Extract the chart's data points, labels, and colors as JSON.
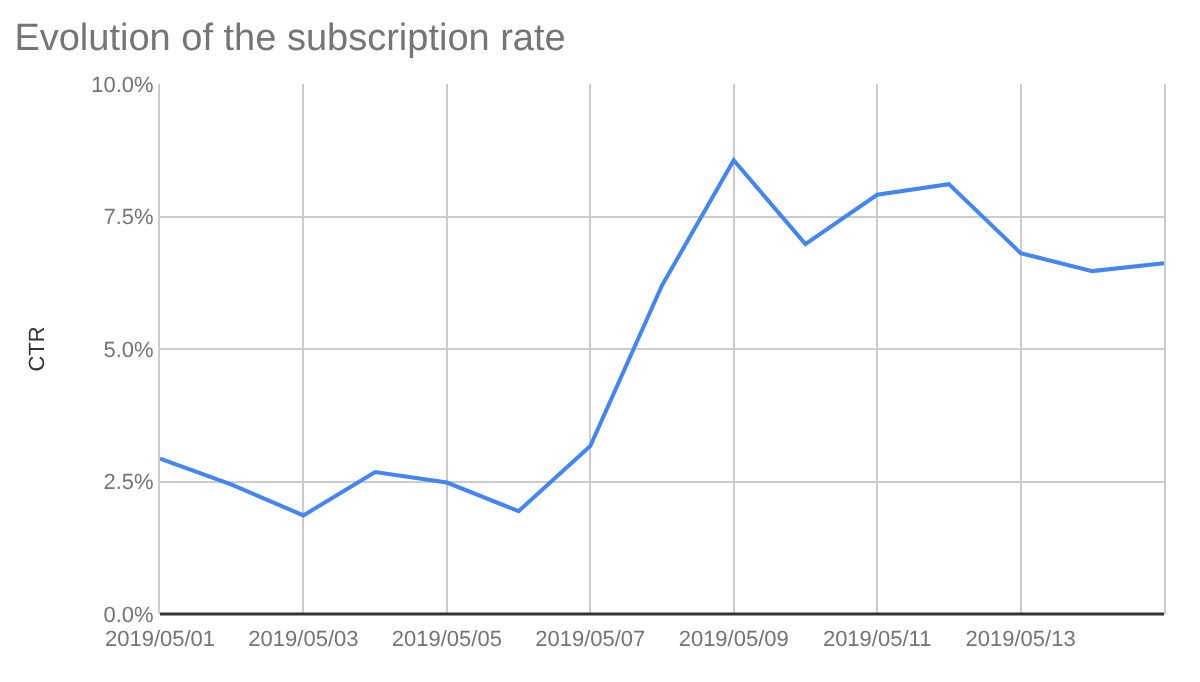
{
  "chart_data": {
    "type": "line",
    "title": "Evolution of the subscription rate",
    "ylabel": "CTR",
    "x": [
      "2019-05-01",
      "2019-05-02",
      "2019-05-03",
      "2019-05-04",
      "2019-05-05",
      "2019-05-06",
      "2019-05-07",
      "2019-05-08",
      "2019-05-09",
      "2019-05-10",
      "2019-05-11",
      "2019-05-12",
      "2019-05-13",
      "2019-05-14",
      "2019-05-15"
    ],
    "series": [
      {
        "color": "#4285f4",
        "values": [
          2.93,
          2.44,
          1.86,
          2.68,
          2.48,
          1.94,
          3.17,
          6.2,
          8.56,
          6.98,
          7.91,
          8.11,
          6.81,
          6.47,
          6.62
        ]
      }
    ],
    "xlim": [
      "2019-05-01",
      "2019-05-15"
    ],
    "xticks": [
      {
        "value": "2019-05-01",
        "label": "2019/05/01"
      },
      {
        "value": "2019-05-03",
        "label": "2019/05/03"
      },
      {
        "value": "2019-05-05",
        "label": "2019/05/05"
      },
      {
        "value": "2019-05-07",
        "label": "2019/05/07"
      },
      {
        "value": "2019-05-09",
        "label": "2019/05/09"
      },
      {
        "value": "2019-05-11",
        "label": "2019/05/11"
      },
      {
        "value": "2019-05-13",
        "label": "2019/05/13"
      }
    ],
    "ylim": [
      0,
      10
    ],
    "yticks": [
      {
        "value": 0,
        "label": "0.0%"
      },
      {
        "value": 2.5,
        "label": "2.5%"
      },
      {
        "value": 5,
        "label": "5.0%"
      },
      {
        "value": 7.5,
        "label": "7.5%"
      },
      {
        "value": 10,
        "label": "10.0%"
      }
    ],
    "grid": true,
    "marker": "none",
    "line_style": "solid"
  }
}
